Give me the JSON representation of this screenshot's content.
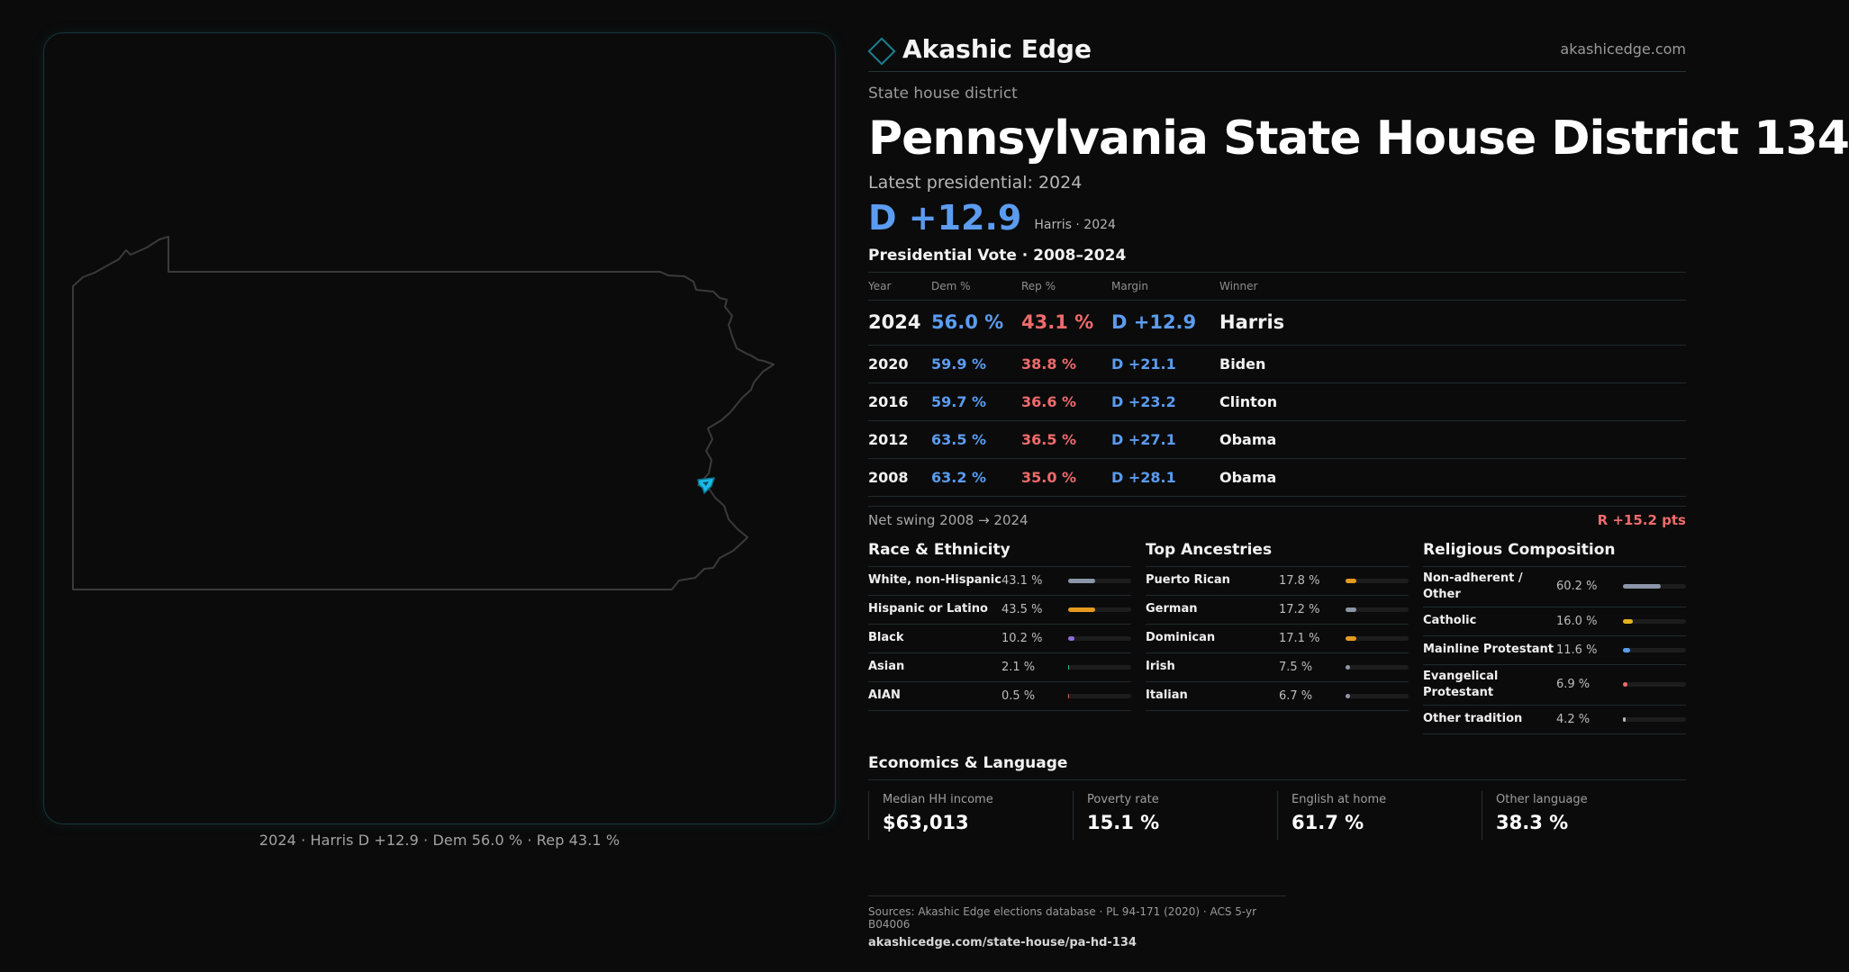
{
  "map": {
    "caption": "2024 · Harris D +12.9 · Dem 56.0 % · Rep 43.1 %",
    "highlight_color": "#1ab8e6",
    "outline_color": "#3a3a3a"
  },
  "brand": {
    "name": "Akashic Edge",
    "url": "akashicedge.com",
    "logo_icon": "diamond-icon"
  },
  "district": {
    "kind": "State house district",
    "title": "Pennsylvania State House District 134",
    "latest_label": "Latest presidential: 2024",
    "margin": "D +12.9",
    "margin_sub": "Harris · 2024"
  },
  "presidential": {
    "title": "Presidential Vote · 2008–2024",
    "headers": {
      "year": "Year",
      "dem": "Dem %",
      "rep": "Rep %",
      "margin": "Margin",
      "winner": "Winner"
    },
    "rows": [
      {
        "year": "2024",
        "dem": "56.0 %",
        "rep": "43.1 %",
        "margin": "D +12.9",
        "winner": "Harris"
      },
      {
        "year": "2020",
        "dem": "59.9 %",
        "rep": "38.8 %",
        "margin": "D +21.1",
        "winner": "Biden"
      },
      {
        "year": "2016",
        "dem": "59.7 %",
        "rep": "36.6 %",
        "margin": "D +23.2",
        "winner": "Clinton"
      },
      {
        "year": "2012",
        "dem": "63.5 %",
        "rep": "36.5 %",
        "margin": "D +27.1",
        "winner": "Obama"
      },
      {
        "year": "2008",
        "dem": "63.2 %",
        "rep": "35.0 %",
        "margin": "D +28.1",
        "winner": "Obama"
      }
    ],
    "swing_label": "Net swing 2008 → 2024",
    "swing_value": "R +15.2 pts"
  },
  "race": {
    "title": "Race & Ethnicity",
    "items": [
      {
        "label": "White, non-Hispanic",
        "pct": "43.1 %",
        "value": 43.1,
        "color": "#8d96a8"
      },
      {
        "label": "Hispanic or Latino",
        "pct": "43.5 %",
        "value": 43.5,
        "color": "#e39a1d"
      },
      {
        "label": "Black",
        "pct": "10.2 %",
        "value": 10.2,
        "color": "#8b6fd6"
      },
      {
        "label": "Asian",
        "pct": "2.1 %",
        "value": 2.1,
        "color": "#2bb3a1"
      },
      {
        "label": "AIAN",
        "pct": "0.5 %",
        "value": 0.5,
        "color": "#c46c4a"
      }
    ]
  },
  "ancestry": {
    "title": "Top Ancestries",
    "items": [
      {
        "label": "Puerto Rican",
        "pct": "17.8 %",
        "value": 17.8,
        "color": "#e39a1d"
      },
      {
        "label": "German",
        "pct": "17.2 %",
        "value": 17.2,
        "color": "#8d96a8"
      },
      {
        "label": "Dominican",
        "pct": "17.1 %",
        "value": 17.1,
        "color": "#e39a1d"
      },
      {
        "label": "Irish",
        "pct": "7.5 %",
        "value": 7.5,
        "color": "#8d96a8"
      },
      {
        "label": "Italian",
        "pct": "6.7 %",
        "value": 6.7,
        "color": "#8d96a8"
      }
    ]
  },
  "religion": {
    "title": "Religious Composition",
    "items": [
      {
        "label": "Non-adherent / Other",
        "pct": "60.2 %",
        "value": 60.2,
        "color": "#8d96a8"
      },
      {
        "label": "Catholic",
        "pct": "16.0 %",
        "value": 16.0,
        "color": "#e3b31d"
      },
      {
        "label": "Mainline Protestant",
        "pct": "11.6 %",
        "value": 11.6,
        "color": "#5b9cf0"
      },
      {
        "label": "Evangelical Protestant",
        "pct": "6.9 %",
        "value": 6.9,
        "color": "#ef6b6b"
      },
      {
        "label": "Other tradition",
        "pct": "4.2 %",
        "value": 4.2,
        "color": "#b5b5b5"
      }
    ]
  },
  "economics": {
    "title": "Economics & Language",
    "items": [
      {
        "label": "Median HH income",
        "value": "$63,013"
      },
      {
        "label": "Poverty rate",
        "value": "15.1 %"
      },
      {
        "label": "English at home",
        "value": "61.7 %"
      },
      {
        "label": "Other language",
        "value": "38.3 %"
      }
    ]
  },
  "sources": {
    "text": "Sources: Akashic Edge elections database · PL 94-171 (2020) · ACS 5-yr B04006",
    "url": "akashicedge.com/state-house/pa-hd-134"
  }
}
